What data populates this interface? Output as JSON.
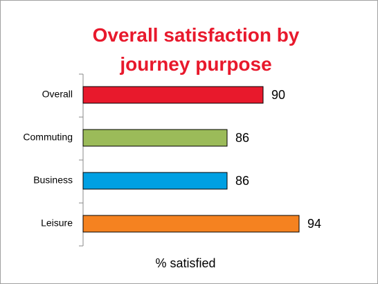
{
  "chart_data": {
    "type": "bar",
    "orientation": "horizontal",
    "title": "Overall satisfaction by journey purpose",
    "categories": [
      "Overall",
      "Commuting",
      "Business",
      "Leisure"
    ],
    "values": [
      90,
      86,
      86,
      94
    ],
    "colors": [
      "#e8192c",
      "#9bbb59",
      "#00a0e3",
      "#f58220"
    ],
    "xlabel": "% satisfied",
    "xlim": [
      70,
      100
    ]
  }
}
